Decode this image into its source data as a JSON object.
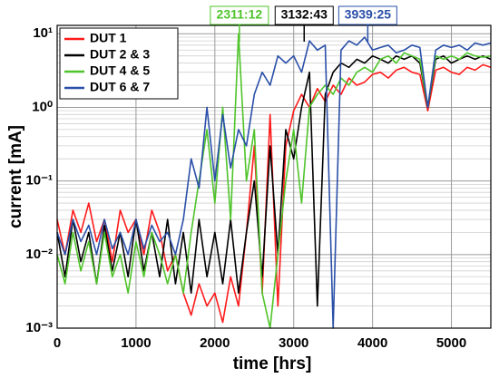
{
  "chart_data": {
    "type": "line",
    "x_label": "time [hrs]",
    "y_label": "current [mA]",
    "x": [
      0,
      100,
      200,
      300,
      400,
      500,
      600,
      700,
      800,
      900,
      1000,
      1100,
      1200,
      1300,
      1400,
      1500,
      1600,
      1700,
      1800,
      1900,
      2000,
      2100,
      2200,
      2300,
      2400,
      2500,
      2600,
      2700,
      2800,
      2900,
      3000,
      3100,
      3200,
      3300,
      3400,
      3500,
      3600,
      3700,
      3800,
      3900,
      4000,
      4100,
      4200,
      4300,
      4400,
      4500,
      4600,
      4700,
      4800,
      4900,
      5000,
      5100,
      5200,
      5300,
      5400,
      5500
    ],
    "series": [
      {
        "name": "DUT 1",
        "color": "#ff1a1a",
        "values": [
          0.03,
          0.01,
          0.04,
          0.02,
          0.05,
          0.015,
          0.03,
          0.008,
          0.04,
          0.02,
          0.03,
          0.01,
          0.04,
          0.02,
          0.006,
          0.01,
          0.003,
          0.0015,
          0.004,
          0.002,
          0.003,
          0.0012,
          0.005,
          0.002,
          0.02,
          0.3,
          0.003,
          0.8,
          0.002,
          0.3,
          0.9,
          1.5,
          1.0,
          1.8,
          1.2,
          2.0,
          1.5,
          2.5,
          2.0,
          2.2,
          2.8,
          3.0,
          2.5,
          3.2,
          3.5,
          3.0,
          2.8,
          0.9,
          3.2,
          3.5,
          3.0,
          2.8,
          3.5,
          3.2,
          3.8,
          3.5
        ]
      },
      {
        "name": "DUT 2 & 3",
        "color": "#000000",
        "values": [
          0.02,
          0.005,
          0.03,
          0.008,
          0.02,
          0.004,
          0.025,
          0.006,
          0.02,
          0.005,
          0.03,
          0.006,
          0.02,
          0.005,
          0.03,
          0.004,
          0.02,
          0.003,
          0.03,
          0.005,
          0.02,
          0.004,
          0.03,
          0.003,
          0.02,
          0.1,
          0.005,
          0.3,
          0.01,
          0.5,
          0.2,
          1.0,
          3.0,
          0.002,
          1.5,
          3.0,
          4.0,
          3.5,
          4.5,
          4.0,
          5.0,
          4.5,
          4.0,
          5.0,
          4.5,
          5.0,
          4.0,
          1.0,
          4.5,
          5.0,
          4.0,
          4.5,
          5.0,
          4.5,
          5.0,
          4.5
        ]
      },
      {
        "name": "DUT 4 & 5",
        "color": "#4fc42a",
        "values": [
          0.01,
          0.004,
          0.02,
          0.006,
          0.015,
          0.004,
          0.02,
          0.005,
          0.01,
          0.003,
          0.015,
          0.005,
          0.02,
          0.01,
          0.004,
          0.01,
          0.003,
          0.02,
          0.1,
          0.5,
          0.05,
          1.0,
          0.03,
          10,
          0.1,
          0.5,
          0.003,
          0.001,
          0.01,
          0.1,
          0.5,
          0.05,
          1.0,
          1.5,
          2.0,
          1.5,
          2.5,
          2.0,
          3.0,
          3.5,
          3.0,
          4.5,
          5.0,
          4.0,
          5.5,
          5.0,
          4.5,
          1.0,
          5.0,
          4.5,
          5.0,
          4.5,
          5.5,
          5.0,
          4.8,
          5.0
        ]
      },
      {
        "name": "DUT 6 & 7",
        "color": "#2a4fa8",
        "values": [
          0.02,
          0.01,
          0.03,
          0.015,
          0.025,
          0.01,
          0.03,
          0.012,
          0.02,
          0.01,
          0.03,
          0.012,
          0.025,
          0.015,
          0.02,
          0.01,
          0.03,
          0.2,
          0.08,
          1.0,
          0.1,
          0.8,
          0.15,
          0.5,
          0.3,
          1.5,
          3.0,
          2.0,
          5.0,
          4.0,
          5.0,
          3.0,
          8.0,
          6.0,
          7.0,
          0.001,
          6.0,
          8.0,
          7.0,
          9.0,
          6.0,
          6.5,
          7.0,
          5.5,
          6.0,
          7.0,
          6.5,
          1.0,
          6.0,
          7.0,
          6.5,
          7.0,
          6.0,
          7.5,
          7.0,
          7.5
        ]
      }
    ],
    "xlim": [
      0,
      5500
    ],
    "xticks": [
      0,
      1000,
      2000,
      3000,
      4000,
      5000
    ],
    "ylim": [
      0.001,
      13
    ],
    "log_y": true,
    "yticks": [
      {
        "value": 0.001,
        "label": "10⁻³"
      },
      {
        "value": 0.01,
        "label": "10⁻²"
      },
      {
        "value": 0.1,
        "label": "10⁻¹"
      },
      {
        "value": 1,
        "label": "10⁰"
      },
      {
        "value": 10,
        "label": "10¹"
      }
    ],
    "grid": true,
    "minor_grid": true,
    "legend": "upper left",
    "annotations": [
      {
        "text": "2311:12",
        "x": 2311.2,
        "color": "#4fc42a"
      },
      {
        "text": "3132:43",
        "x": 3132.72,
        "color": "#000000"
      },
      {
        "text": "3939:25",
        "x": 3939.42,
        "color": "#2a4fa8"
      }
    ]
  }
}
